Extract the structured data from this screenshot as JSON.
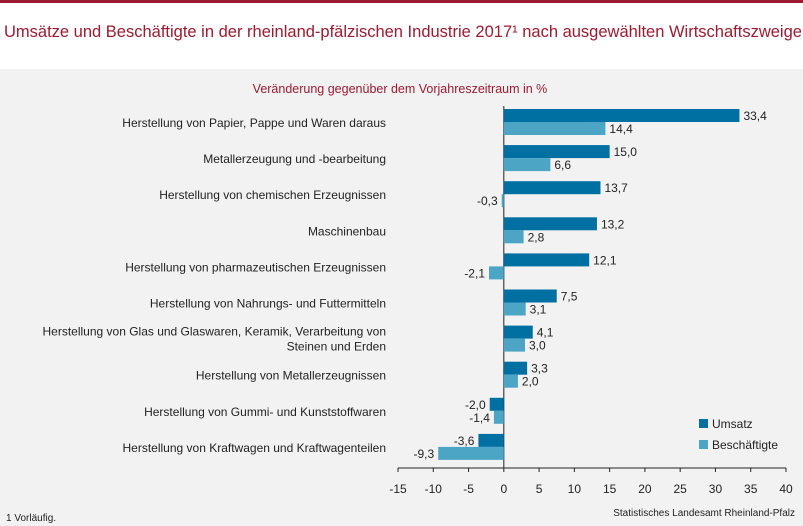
{
  "colors": {
    "accent": "#9b1b30",
    "umsatz": "#006fa1",
    "beschaeftigte": "#4da5c6",
    "panel": "#f2f2f2"
  },
  "chart_data": {
    "type": "bar",
    "orientation": "horizontal",
    "title": "Umsätze und Beschäftigte in der rheinland-pfälzischen Industrie 2017¹ nach ausgewählten Wirtschaftszweigen",
    "subtitle": "Veränderung gegenüber dem Vorjahreszeitraum in %",
    "categories": [
      [
        "Herstellung von Papier, Pappe und Waren daraus"
      ],
      [
        "Metallerzeugung und -bearbeitung"
      ],
      [
        "Herstellung von chemischen Erzeugnissen"
      ],
      [
        "Maschinenbau"
      ],
      [
        "Herstellung von pharmazeutischen Erzeugnissen"
      ],
      [
        "Herstellung von Nahrungs- und Futtermitteln"
      ],
      [
        "Herstellung von Glas und Glaswaren, Keramik, Verarbeitung von",
        "Steinen und Erden"
      ],
      [
        "Herstellung von Metallerzeugnissen"
      ],
      [
        "Herstellung von Gummi- und Kunststoffwaren"
      ],
      [
        "Herstellung von Kraftwagen und Kraftwagenteilen"
      ]
    ],
    "series": [
      {
        "name": "Umsatz",
        "values": [
          33.4,
          15.0,
          13.7,
          13.2,
          12.1,
          7.5,
          4.1,
          3.3,
          -2.0,
          -3.6
        ]
      },
      {
        "name": "Beschäftigte",
        "values": [
          14.4,
          6.6,
          -0.3,
          2.8,
          -2.1,
          3.1,
          3.0,
          2.0,
          -1.4,
          -9.3
        ]
      }
    ],
    "xlim": [
      -15,
      40
    ],
    "xticks": [
      -15,
      -10,
      -5,
      0,
      5,
      10,
      15,
      20,
      25,
      30,
      35,
      40
    ],
    "grid": false,
    "legend_position": "bottom-right",
    "number_format": "de-DE, 1 decimal"
  },
  "footnote": "1 Vorläufig.",
  "source": "Statistisches Landesamt Rheinland-Pfalz"
}
